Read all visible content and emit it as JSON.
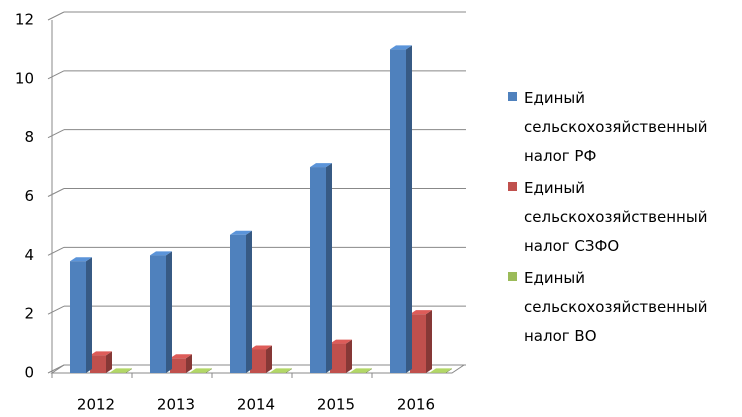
{
  "chart_data": {
    "type": "bar3d",
    "categories": [
      "2012",
      "2013",
      "2014",
      "2015",
      "2016"
    ],
    "series": [
      {
        "name": "Единый сельскохозяйственный налог РФ",
        "color": "#4f81bd",
        "values": [
          3.8,
          4.0,
          4.7,
          7.0,
          11.0
        ]
      },
      {
        "name": "Единый сельскохозяйственный налог СЗФО",
        "color": "#c0504d",
        "values": [
          0.6,
          0.5,
          0.8,
          1.0,
          2.0
        ]
      },
      {
        "name": "Единый сельскохозяйственный налог ВО",
        "color": "#9bbb59",
        "values": [
          0.02,
          0.02,
          0.02,
          0.02,
          0.02
        ]
      }
    ],
    "ylim": [
      0,
      12
    ],
    "yticks": [
      0,
      2,
      4,
      6,
      8,
      10,
      12
    ],
    "grid": true,
    "legend": "right"
  }
}
